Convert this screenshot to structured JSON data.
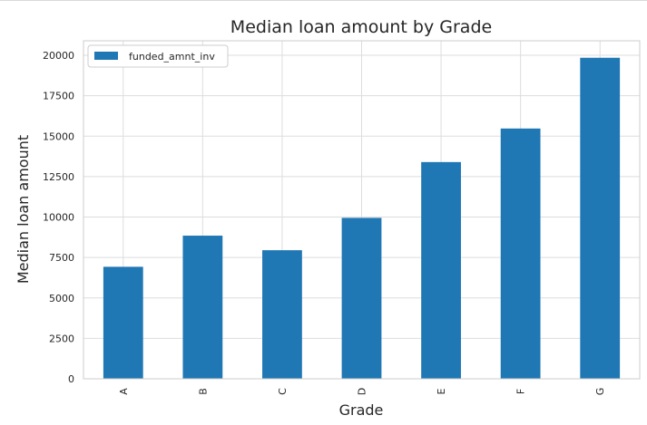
{
  "chart_data": {
    "type": "bar",
    "title": "Median loan amount by Grade",
    "xlabel": "Grade",
    "ylabel": "Median loan amount",
    "categories": [
      "A",
      "B",
      "C",
      "D",
      "E",
      "F",
      "G"
    ],
    "series": [
      {
        "name": "funded_amnt_inv",
        "values": [
          6925,
          8850,
          7950,
          9950,
          13400,
          15475,
          19850
        ]
      }
    ],
    "ylim": [
      0,
      20900
    ],
    "yticks": [
      0,
      2500,
      5000,
      7500,
      10000,
      12500,
      15000,
      17500,
      20000
    ],
    "grid": true,
    "legend_position": "top-left",
    "bar_color": "#1f77b4"
  }
}
